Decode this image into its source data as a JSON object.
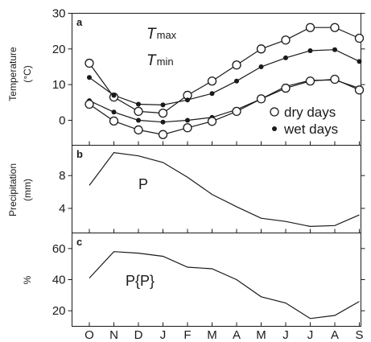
{
  "chart_data": [
    {
      "id": "a",
      "type": "line",
      "panel_label": "a",
      "ylabel_line1": "Temperature",
      "ylabel_line2": "(°C)",
      "ylim": [
        -7,
        30
      ],
      "yticks": [
        0,
        10,
        20,
        30
      ],
      "categories": [
        "O",
        "N",
        "D",
        "J",
        "F",
        "M",
        "A",
        "M",
        "J",
        "J",
        "A",
        "S"
      ],
      "annotation_tmax_main": "T",
      "annotation_tmax_sub": "max",
      "annotation_tmin_main": "T",
      "annotation_tmin_sub": "min",
      "legend": [
        {
          "label": "dry days",
          "marker": "open-circle"
        },
        {
          "label": "wet days",
          "marker": "filled-dot"
        }
      ],
      "series": [
        {
          "group": "Tmax",
          "marker": "open-circle",
          "values": [
            16.0,
            6.5,
            2.5,
            2.0,
            7.0,
            11.0,
            15.5,
            20.0,
            22.5,
            26.0,
            26.0,
            23.0
          ]
        },
        {
          "group": "Tmax",
          "marker": "filled-dot",
          "values": [
            12.0,
            7.0,
            4.5,
            4.3,
            5.7,
            7.5,
            11.0,
            15.0,
            17.5,
            19.5,
            19.8,
            16.5
          ]
        },
        {
          "group": "Tmin",
          "marker": "filled-dot",
          "values": [
            5.5,
            2.3,
            0.0,
            -0.5,
            0.0,
            0.8,
            3.0,
            6.0,
            9.5,
            11.2,
            11.3,
            9.0
          ]
        },
        {
          "group": "Tmin",
          "marker": "open-circle",
          "values": [
            4.5,
            -0.2,
            -2.7,
            -4.0,
            -2.1,
            -0.3,
            2.5,
            6.0,
            9.0,
            11.0,
            11.5,
            8.5
          ]
        }
      ]
    },
    {
      "id": "b",
      "type": "line",
      "panel_label": "b",
      "ylabel_line1": "Precipitation",
      "ylabel_line2": "(mm)",
      "ylim": [
        1,
        11.7
      ],
      "yticks": [
        4,
        8
      ],
      "categories": [
        "O",
        "N",
        "D",
        "J",
        "F",
        "M",
        "A",
        "M",
        "J",
        "J",
        "A",
        "S"
      ],
      "curve_label": "P",
      "series": [
        {
          "values": [
            6.8,
            10.8,
            10.4,
            9.6,
            7.8,
            5.7,
            4.2,
            2.8,
            2.4,
            1.8,
            1.9,
            3.2
          ]
        }
      ]
    },
    {
      "id": "c",
      "type": "line",
      "panel_label": "c",
      "ylabel_line1": "%",
      "ylabel_line2": "",
      "ylim": [
        10,
        70
      ],
      "yticks": [
        20,
        40,
        60
      ],
      "categories": [
        "O",
        "N",
        "D",
        "J",
        "F",
        "M",
        "A",
        "M",
        "J",
        "J",
        "A",
        "S"
      ],
      "curve_label": "P{P}",
      "series": [
        {
          "values": [
            41,
            58,
            57,
            55,
            48,
            47,
            40,
            29,
            25,
            15,
            17,
            26
          ]
        }
      ]
    }
  ]
}
